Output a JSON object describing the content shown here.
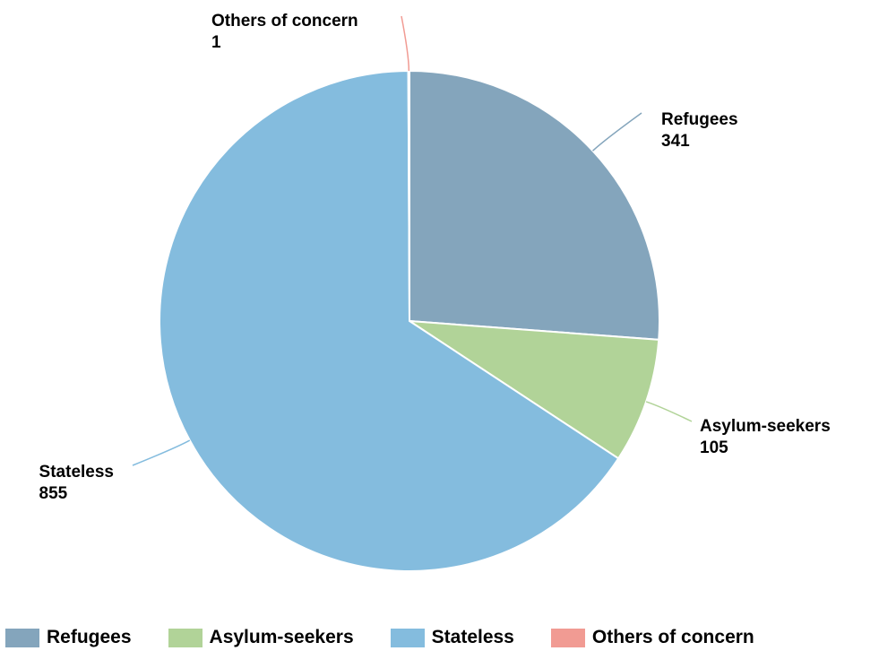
{
  "chart_data": {
    "type": "pie",
    "categories": [
      "Refugees",
      "Asylum-seekers",
      "Stateless",
      "Others of concern"
    ],
    "values": [
      341,
      105,
      855,
      1
    ],
    "colors": [
      "#84a5bc",
      "#b1d398",
      "#84bcde",
      "#f19b93"
    ],
    "slice_labels": [
      "Refugees",
      "Asylum-seekers",
      "Stateless",
      "Others of concern"
    ],
    "value_labels": [
      "341",
      "105",
      "855",
      "1"
    ],
    "legend": {
      "position": "bottom-left",
      "items": [
        "Refugees",
        "Asylum-seekers",
        "Stateless",
        "Others of concern"
      ]
    },
    "start_angle": "top",
    "direction": "clockwise"
  }
}
